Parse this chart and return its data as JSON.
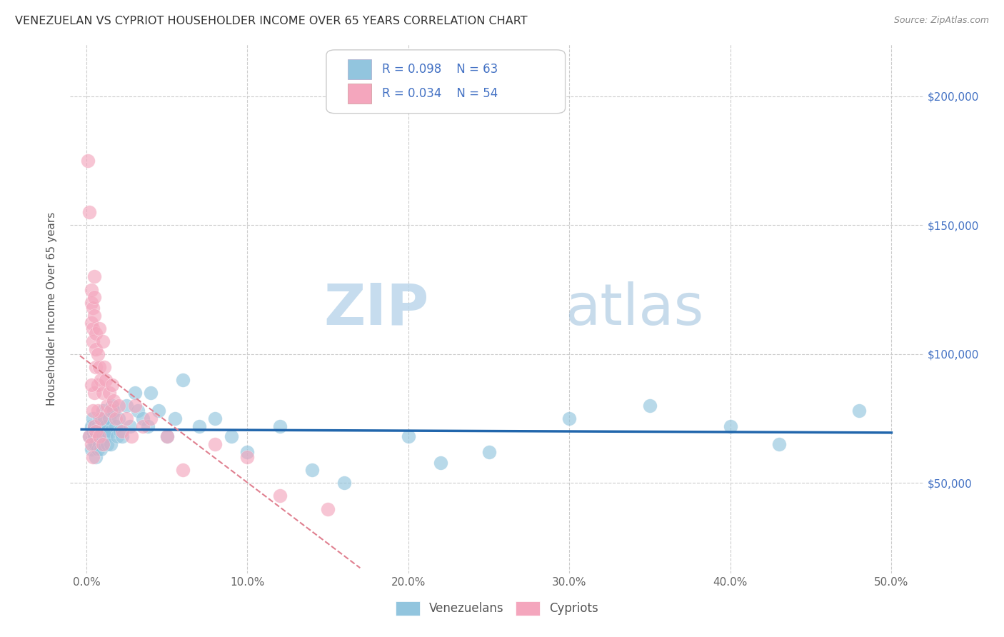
{
  "title": "VENEZUELAN VS CYPRIOT HOUSEHOLDER INCOME OVER 65 YEARS CORRELATION CHART",
  "source": "Source: ZipAtlas.com",
  "ylabel": "Householder Income Over 65 years",
  "xlabel_ticks": [
    "0.0%",
    "10.0%",
    "20.0%",
    "30.0%",
    "40.0%",
    "50.0%"
  ],
  "xlabel_vals": [
    0.0,
    0.1,
    0.2,
    0.3,
    0.4,
    0.5
  ],
  "ylabel_ticks": [
    "$50,000",
    "$100,000",
    "$150,000",
    "$200,000"
  ],
  "ylabel_vals": [
    50000,
    100000,
    150000,
    200000
  ],
  "xlim": [
    -0.01,
    0.52
  ],
  "ylim": [
    15000,
    220000
  ],
  "blue_color": "#92c5de",
  "pink_color": "#f4a6bd",
  "blue_line_color": "#2166ac",
  "pink_line_color": "#e08090",
  "venezuelan_x": [
    0.002,
    0.003,
    0.003,
    0.004,
    0.004,
    0.005,
    0.005,
    0.005,
    0.006,
    0.006,
    0.006,
    0.007,
    0.007,
    0.008,
    0.008,
    0.008,
    0.009,
    0.009,
    0.01,
    0.01,
    0.01,
    0.011,
    0.011,
    0.012,
    0.012,
    0.013,
    0.013,
    0.014,
    0.015,
    0.015,
    0.016,
    0.017,
    0.018,
    0.019,
    0.02,
    0.021,
    0.022,
    0.025,
    0.027,
    0.03,
    0.032,
    0.035,
    0.038,
    0.04,
    0.045,
    0.05,
    0.055,
    0.06,
    0.07,
    0.08,
    0.09,
    0.1,
    0.12,
    0.14,
    0.16,
    0.2,
    0.22,
    0.25,
    0.3,
    0.35,
    0.4,
    0.43,
    0.48
  ],
  "venezuelan_y": [
    68000,
    63000,
    72000,
    75000,
    70000,
    65000,
    68000,
    72000,
    60000,
    65000,
    70000,
    63000,
    72000,
    68000,
    65000,
    75000,
    70000,
    63000,
    78000,
    72000,
    65000,
    70000,
    75000,
    68000,
    72000,
    65000,
    70000,
    75000,
    65000,
    70000,
    80000,
    78000,
    72000,
    68000,
    75000,
    70000,
    68000,
    80000,
    72000,
    85000,
    78000,
    75000,
    72000,
    85000,
    78000,
    68000,
    75000,
    90000,
    72000,
    75000,
    68000,
    62000,
    72000,
    55000,
    50000,
    68000,
    58000,
    62000,
    75000,
    80000,
    72000,
    65000,
    78000
  ],
  "cypriot_x": [
    0.001,
    0.002,
    0.002,
    0.003,
    0.003,
    0.003,
    0.003,
    0.004,
    0.004,
    0.004,
    0.004,
    0.005,
    0.005,
    0.005,
    0.005,
    0.005,
    0.006,
    0.006,
    0.006,
    0.006,
    0.007,
    0.007,
    0.007,
    0.008,
    0.008,
    0.008,
    0.009,
    0.009,
    0.01,
    0.01,
    0.01,
    0.011,
    0.012,
    0.013,
    0.014,
    0.015,
    0.016,
    0.017,
    0.018,
    0.02,
    0.022,
    0.025,
    0.028,
    0.03,
    0.035,
    0.04,
    0.05,
    0.06,
    0.08,
    0.1,
    0.12,
    0.15,
    0.003,
    0.004
  ],
  "cypriot_y": [
    175000,
    155000,
    68000,
    125000,
    120000,
    112000,
    65000,
    118000,
    110000,
    105000,
    60000,
    130000,
    122000,
    115000,
    85000,
    72000,
    108000,
    102000,
    95000,
    70000,
    100000,
    88000,
    78000,
    110000,
    95000,
    68000,
    90000,
    75000,
    105000,
    85000,
    65000,
    95000,
    90000,
    80000,
    85000,
    78000,
    88000,
    82000,
    75000,
    80000,
    70000,
    75000,
    68000,
    80000,
    72000,
    75000,
    68000,
    55000,
    65000,
    60000,
    45000,
    40000,
    88000,
    78000
  ]
}
